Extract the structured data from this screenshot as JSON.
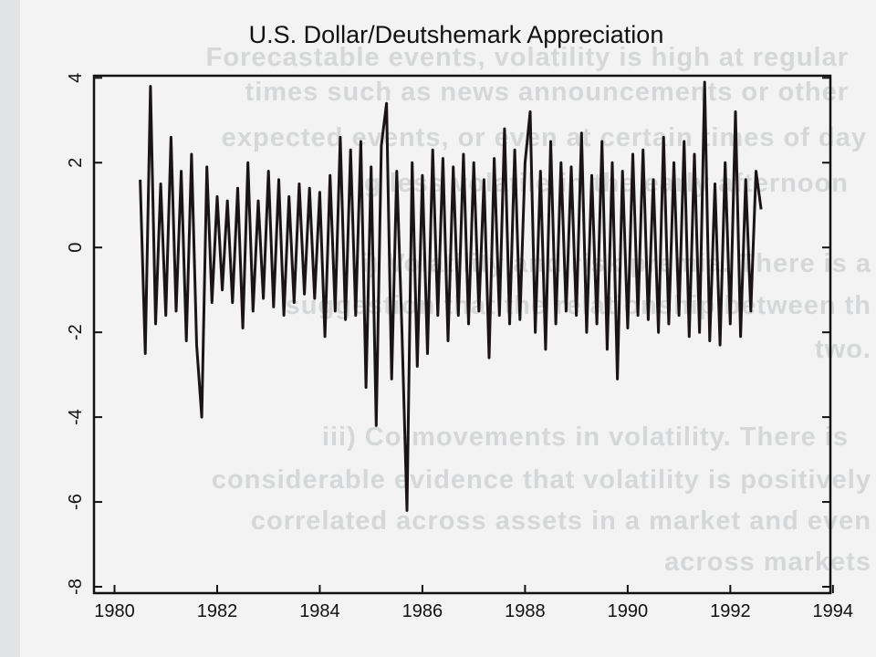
{
  "background_text": [
    "Forecastable events, volatility is high at regular",
    "times such as news announcements or other",
    "expected events, or even at certain times of day",
    "g less volatile in the early afternoon",
    "i) Volatility and risk premia. There is a",
    "suggestion that the relationship between th",
    "two.",
    "iii) Co-movements in volatility. There is",
    "considerable evidence that volatility is positively",
    "correlated across assets in a market and even",
    "across markets"
  ],
  "chart_data": {
    "type": "line",
    "title": "U.S. Dollar/Deutshemark Appreciation",
    "x": [
      1980.5,
      1980.6,
      1980.7,
      1980.8,
      1980.9,
      1981.0,
      1981.1,
      1981.2,
      1981.3,
      1981.4,
      1981.5,
      1981.6,
      1981.7,
      1981.8,
      1981.9,
      1982.0,
      1982.1,
      1982.2,
      1982.3,
      1982.4,
      1982.5,
      1982.6,
      1982.7,
      1982.8,
      1982.9,
      1983.0,
      1983.1,
      1983.2,
      1983.3,
      1983.4,
      1983.5,
      1983.6,
      1983.7,
      1983.8,
      1983.9,
      1984.0,
      1984.1,
      1984.2,
      1984.3,
      1984.4,
      1984.5,
      1984.6,
      1984.7,
      1984.8,
      1984.9,
      1985.0,
      1985.1,
      1985.2,
      1985.3,
      1985.4,
      1985.5,
      1985.6,
      1985.7,
      1985.8,
      1985.9,
      1986.0,
      1986.1,
      1986.2,
      1986.3,
      1986.4,
      1986.5,
      1986.6,
      1986.7,
      1986.8,
      1986.9,
      1987.0,
      1987.1,
      1987.2,
      1987.3,
      1987.4,
      1987.5,
      1987.6,
      1987.7,
      1987.8,
      1987.9,
      1988.0,
      1988.1,
      1988.2,
      1988.3,
      1988.4,
      1988.5,
      1988.6,
      1988.7,
      1988.8,
      1988.9,
      1989.0,
      1989.1,
      1989.2,
      1989.3,
      1989.4,
      1989.5,
      1989.6,
      1989.7,
      1989.8,
      1989.9,
      1990.0,
      1990.1,
      1990.2,
      1990.3,
      1990.4,
      1990.5,
      1990.6,
      1990.7,
      1990.8,
      1990.9,
      1991.0,
      1991.1,
      1991.2,
      1991.3,
      1991.4,
      1991.5,
      1991.6,
      1991.7,
      1991.8,
      1991.9,
      1992.0,
      1992.1,
      1992.2,
      1992.3,
      1992.4,
      1992.5,
      1992.6
    ],
    "series": [
      {
        "color": "#1a1416",
        "values": [
          1.6,
          -2.5,
          3.8,
          -1.8,
          1.5,
          -1.6,
          2.6,
          -1.5,
          1.8,
          -2.2,
          2.2,
          -2.3,
          -4.0,
          1.9,
          -1.3,
          1.2,
          -1.0,
          1.1,
          -1.3,
          1.4,
          -1.9,
          2.0,
          -1.5,
          1.1,
          -1.2,
          1.8,
          -1.4,
          1.6,
          -1.6,
          1.2,
          -1.3,
          1.5,
          -1.1,
          1.4,
          -1.2,
          1.3,
          -2.1,
          1.7,
          -1.5,
          2.6,
          -1.7,
          2.3,
          -1.6,
          2.5,
          -3.3,
          1.9,
          -4.2,
          2.4,
          3.4,
          -3.1,
          1.8,
          -1.9,
          -6.2,
          2.0,
          -2.8,
          1.7,
          -2.5,
          2.3,
          -1.6,
          2.1,
          -2.2,
          1.9,
          -1.6,
          2.2,
          -1.8,
          2.0,
          -1.5,
          1.6,
          -2.6,
          2.1,
          -1.6,
          2.8,
          -1.8,
          2.3,
          -1.7,
          2.0,
          3.2,
          -2.0,
          1.8,
          -2.4,
          2.5,
          -1.8,
          2.0,
          -1.5,
          1.9,
          -1.6,
          2.7,
          -2.0,
          1.7,
          -1.8,
          2.5,
          -2.4,
          2.0,
          -3.1,
          1.8,
          -1.9,
          2.2,
          -1.6,
          2.3,
          -1.7,
          1.6,
          -2.0,
          2.6,
          -1.8,
          2.0,
          -1.6,
          2.5,
          -2.1,
          2.2,
          -2.0,
          3.9,
          -2.2,
          1.5,
          -2.3,
          2.0,
          -1.8,
          3.2,
          -2.1,
          1.6,
          -1.5,
          1.8,
          0.9
        ]
      }
    ],
    "xlim": [
      1979.6,
      1993.95
    ],
    "xticks": [
      1980,
      1982,
      1984,
      1986,
      1988,
      1990,
      1992,
      1994
    ],
    "ylim": [
      -8.15,
      4.05
    ],
    "yticks": [
      4,
      2,
      0,
      -2,
      -4,
      -6,
      -8
    ]
  }
}
